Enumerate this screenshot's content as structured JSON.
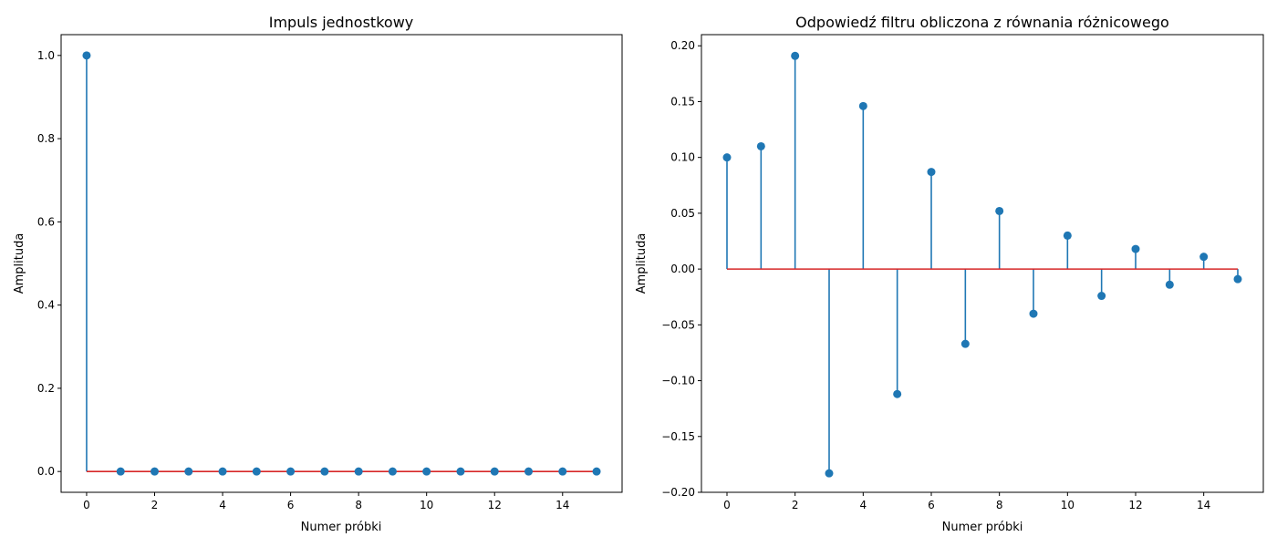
{
  "chart_data": [
    {
      "type": "stem",
      "title": "Impuls jednostkowy",
      "xlabel": "Numer próbki",
      "ylabel": "Amplituda",
      "x": [
        0,
        1,
        2,
        3,
        4,
        5,
        6,
        7,
        8,
        9,
        10,
        11,
        12,
        13,
        14,
        15
      ],
      "values": [
        1,
        0,
        0,
        0,
        0,
        0,
        0,
        0,
        0,
        0,
        0,
        0,
        0,
        0,
        0,
        0
      ],
      "xlim": [
        -0.75,
        15.75
      ],
      "ylim": [
        -0.05,
        1.05
      ],
      "xticks": [
        "0",
        "2",
        "4",
        "6",
        "8",
        "10",
        "12",
        "14"
      ],
      "yticks": [
        "0.0",
        "0.2",
        "0.4",
        "0.6",
        "0.8",
        "1.0"
      ],
      "grid": false,
      "colors": {
        "stem": "#1f77b4",
        "marker": "#1f77b4",
        "baseline": "#d62728"
      }
    },
    {
      "type": "stem",
      "title": "Odpowiedź filtru obliczona z równania różnicowego",
      "xlabel": "Numer próbki",
      "ylabel": "Amplituda",
      "x": [
        0,
        1,
        2,
        3,
        4,
        5,
        6,
        7,
        8,
        9,
        10,
        11,
        12,
        13,
        14,
        15
      ],
      "values": [
        0.1,
        0.11,
        0.191,
        -0.183,
        0.146,
        -0.112,
        0.087,
        -0.067,
        0.052,
        -0.04,
        0.03,
        -0.024,
        0.018,
        -0.014,
        0.011,
        -0.009
      ],
      "xlim": [
        -0.75,
        15.75
      ],
      "ylim": [
        -0.2,
        0.21
      ],
      "xticks": [
        "0",
        "2",
        "4",
        "6",
        "8",
        "10",
        "12",
        "14"
      ],
      "yticks": [
        "0.20",
        "0.15",
        "0.10",
        "0.05",
        "0.00",
        "−0.05",
        "−0.10",
        "−0.15",
        "−0.20"
      ],
      "grid": false,
      "colors": {
        "stem": "#1f77b4",
        "marker": "#1f77b4",
        "baseline": "#d62728"
      }
    }
  ]
}
